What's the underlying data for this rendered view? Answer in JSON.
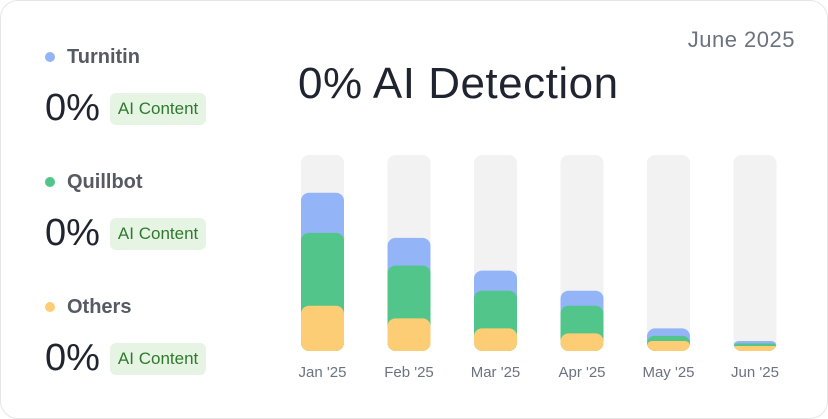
{
  "header": {
    "date": "June 2025",
    "title": "0% AI Detection"
  },
  "legend": [
    {
      "name": "Turnitin",
      "value": "0%",
      "badge": "AI Content",
      "color": "#93b4f6"
    },
    {
      "name": "Quillbot",
      "value": "0%",
      "badge": "AI Content",
      "color": "#52c58a"
    },
    {
      "name": "Others",
      "value": "0%",
      "badge": "AI Content",
      "color": "#fccd75"
    }
  ],
  "colors": {
    "track": "#f2f2f2",
    "badge_bg": "#e6f4e3",
    "badge_text": "#2f7a2f"
  },
  "chart_data": {
    "type": "bar",
    "stacked": true,
    "categories": [
      "Jan '25",
      "Feb '25",
      "Mar '25",
      "Apr '25",
      "May '25",
      "Jun '25"
    ],
    "series": [
      {
        "name": "Others",
        "color": "#fccd75",
        "values": [
          18,
          13,
          9,
          7,
          4,
          2
        ]
      },
      {
        "name": "Quillbot",
        "color": "#52c58a",
        "values": [
          29,
          21,
          15,
          11,
          2,
          1
        ]
      },
      {
        "name": "Turnitin",
        "color": "#93b4f6",
        "values": [
          16,
          11,
          8,
          6,
          3,
          1
        ]
      }
    ],
    "ylim": [
      0,
      78
    ],
    "grid": false
  }
}
